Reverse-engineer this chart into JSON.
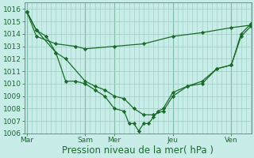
{
  "title": "",
  "xlabel": "Pression niveau de la mer( hPa )",
  "ylabel": "",
  "background_color": "#c8ede8",
  "grid_color": "#99ccbb",
  "line_color": "#1a6b2a",
  "ylim": [
    1006,
    1016.5
  ],
  "yticks": [
    1006,
    1007,
    1008,
    1009,
    1010,
    1011,
    1012,
    1013,
    1014,
    1015,
    1016
  ],
  "xtick_labels": [
    "Mar",
    "Sam",
    "Mer",
    "Jeu",
    "Ven"
  ],
  "xtick_positions": [
    0,
    0.5,
    0.75,
    1.25,
    1.75
  ],
  "xlim": [
    -0.02,
    1.92
  ],
  "vline_positions": [
    0,
    0.5,
    0.75,
    1.25,
    1.75
  ],
  "series1_x": [
    0,
    0.083,
    0.167,
    0.25,
    0.333,
    0.417,
    0.5,
    0.583,
    0.667,
    0.75,
    0.833,
    0.875,
    0.917,
    0.958,
    1.0,
    1.042,
    1.083,
    1.125,
    1.167,
    1.25,
    1.375,
    1.5,
    1.625,
    1.75,
    1.833,
    1.917
  ],
  "series1_y": [
    1015.8,
    1014.3,
    1013.8,
    1012.5,
    1010.2,
    1010.2,
    1010.0,
    1009.5,
    1009.0,
    1008.0,
    1007.8,
    1006.8,
    1006.8,
    1006.2,
    1006.8,
    1006.8,
    1007.3,
    1007.8,
    1008.0,
    1009.3,
    1009.8,
    1010.0,
    1011.2,
    1011.5,
    1013.8,
    1014.6
  ],
  "series2_x": [
    0,
    0.083,
    0.25,
    0.417,
    0.5,
    0.75,
    1.0,
    1.25,
    1.5,
    1.75,
    1.917
  ],
  "series2_y": [
    1015.8,
    1013.8,
    1013.2,
    1013.0,
    1012.8,
    1013.0,
    1013.2,
    1013.8,
    1014.1,
    1014.5,
    1014.7
  ],
  "series3_x": [
    0,
    0.083,
    0.25,
    0.333,
    0.5,
    0.583,
    0.667,
    0.75,
    0.833,
    0.917,
    1.0,
    1.083,
    1.167,
    1.25,
    1.375,
    1.5,
    1.625,
    1.75,
    1.833,
    1.917
  ],
  "series3_y": [
    1015.8,
    1014.3,
    1012.5,
    1012.0,
    1010.2,
    1009.8,
    1009.5,
    1009.0,
    1008.8,
    1008.0,
    1007.5,
    1007.5,
    1007.8,
    1009.0,
    1009.8,
    1010.2,
    1011.2,
    1011.5,
    1014.0,
    1014.8
  ],
  "tick_fontsize": 6.5,
  "xlabel_fontsize": 8.5
}
